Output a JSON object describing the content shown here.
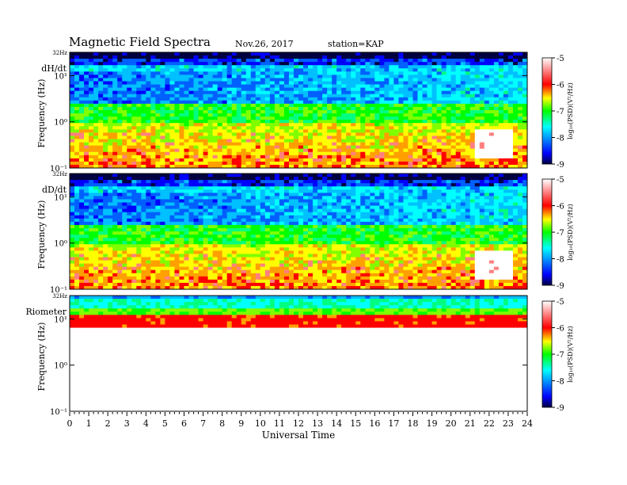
{
  "header": {
    "title": "Magnetic  Field  Spectra",
    "date": "Nov.26, 2017",
    "station": "station=KAP"
  },
  "chart_data": [
    {
      "type": "heatmap",
      "panel": "dH/dt",
      "top_label": "32Hz",
      "ylabel": "Frequency  (Hz)",
      "xlabel": "Universal Time",
      "yscale": "log",
      "ylim": [
        0.1,
        32
      ],
      "y_ticks": [
        "10¹",
        "10⁰",
        "10⁻¹"
      ],
      "xlim": [
        0,
        24
      ],
      "colorbar": {
        "label": "log₁₀(PSD)(V²/Hz)",
        "range": [
          -9,
          -5
        ],
        "ticks": [
          "-5",
          "-6",
          "-7",
          "-8",
          "-9"
        ]
      }
    },
    {
      "type": "heatmap",
      "panel": "dD/dt",
      "top_label": "32Hz",
      "ylabel": "Frequency  (Hz)",
      "yscale": "log",
      "ylim": [
        0.1,
        32
      ],
      "y_ticks": [
        "10¹",
        "10⁰",
        "10⁻¹"
      ],
      "xlim": [
        0,
        24
      ],
      "colorbar": {
        "label": "log₁₀(PSD)(V²/Hz)",
        "range": [
          -9,
          -5
        ],
        "ticks": [
          "-5",
          "-6",
          "-7",
          "-8",
          "-9"
        ]
      }
    },
    {
      "type": "heatmap",
      "panel": "Riometer",
      "top_label": "32Hz",
      "ylabel": "Frequency  (Hz)",
      "yscale": "log",
      "ylim": [
        0.1,
        32
      ],
      "y_ticks": [
        "10¹",
        "10⁰",
        "10⁻¹"
      ],
      "xlim": [
        0,
        24
      ],
      "colorbar": {
        "label": "log₁₀(PSD)(V²/Hz)",
        "range": [
          -9,
          -5
        ],
        "ticks": [
          "-5",
          "-6",
          "-7",
          "-8",
          "-9"
        ]
      }
    }
  ],
  "x_axis": {
    "label": "Universal Time",
    "ticks": [
      "0",
      "1",
      "2",
      "3",
      "4",
      "5",
      "6",
      "7",
      "8",
      "9",
      "10",
      "11",
      "12",
      "13",
      "14",
      "15",
      "16",
      "17",
      "18",
      "19",
      "20",
      "21",
      "22",
      "23",
      "24"
    ]
  },
  "colors": {
    "scale": [
      "#000040",
      "#0000ff",
      "#00ffff",
      "#00ff00",
      "#ffff00",
      "#ff0000",
      "#ffffff"
    ]
  }
}
